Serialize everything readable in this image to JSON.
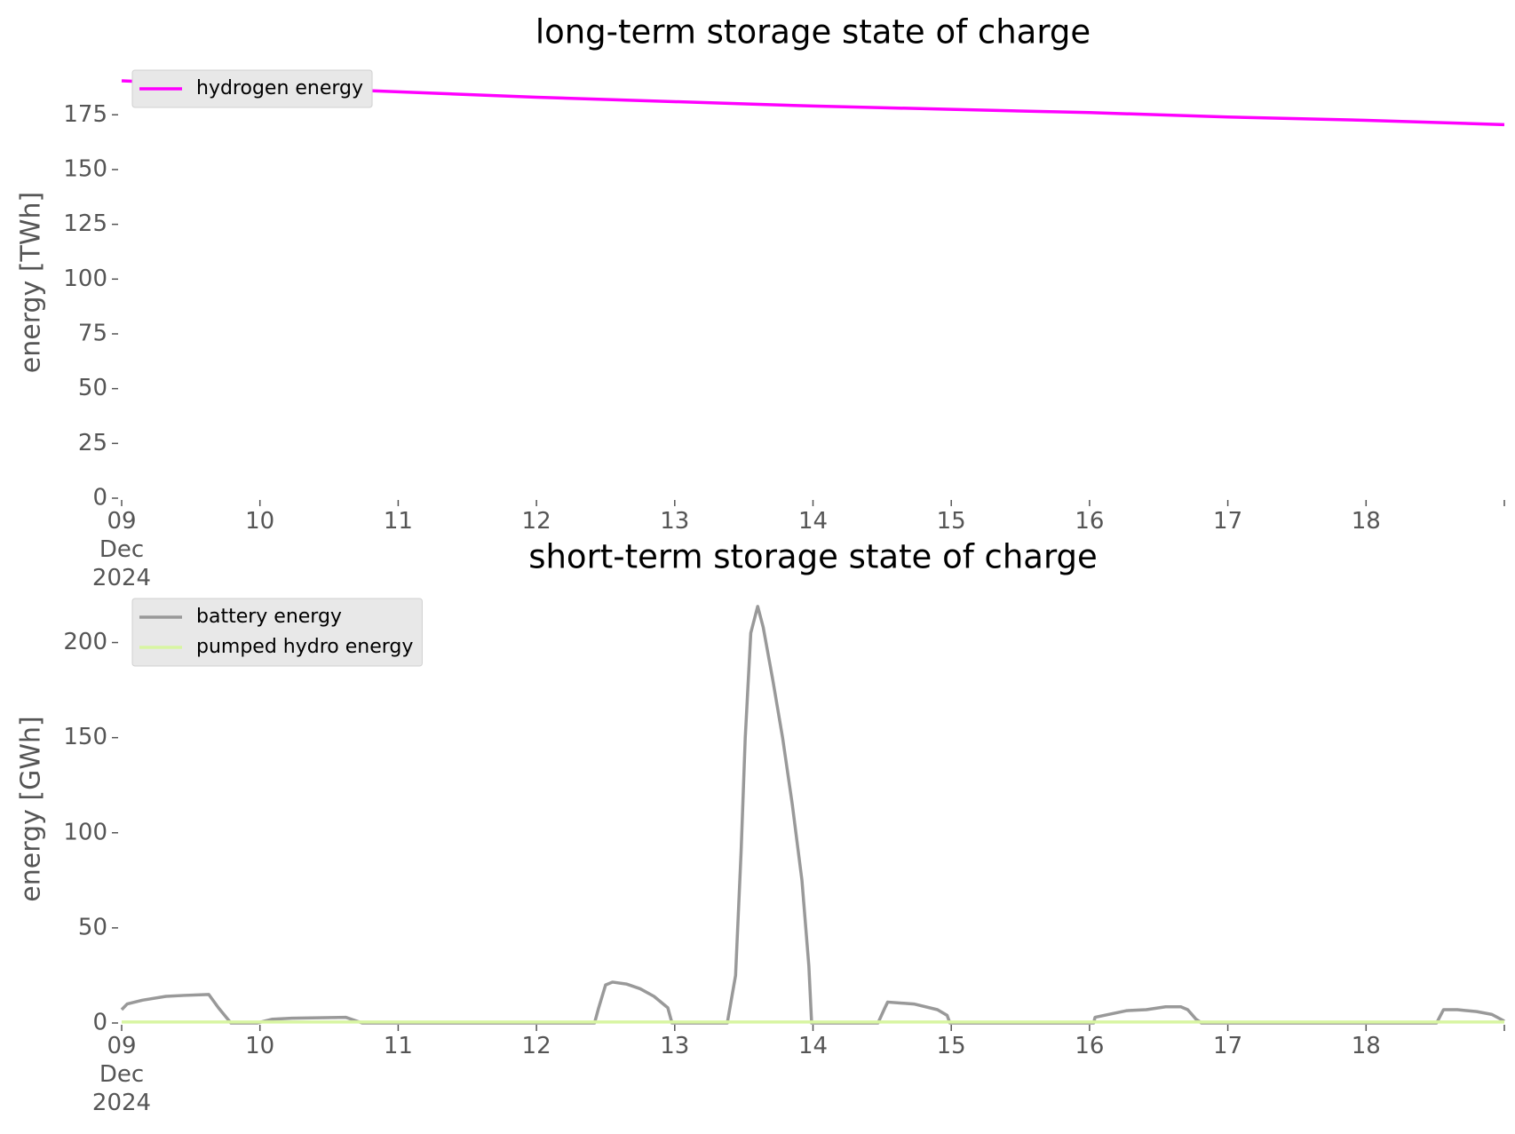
{
  "chart_data": [
    {
      "type": "line",
      "title": "long-term storage state of charge",
      "ylabel": "energy [TWh]",
      "x": [
        0,
        1,
        2,
        3,
        4,
        5,
        6,
        7,
        8,
        9,
        10
      ],
      "series": [
        {
          "name": "hydrogen energy",
          "color": "#ff00ff",
          "values": [
            190.5,
            188,
            185.5,
            183,
            181,
            179,
            177.5,
            176,
            174,
            172.5,
            170.5
          ]
        }
      ],
      "xlim": [
        0,
        10
      ],
      "xticks": [
        {
          "value": 0,
          "label": "09\nDec\n2024"
        },
        {
          "value": 1,
          "label": "10"
        },
        {
          "value": 2,
          "label": "11"
        },
        {
          "value": 3,
          "label": "12"
        },
        {
          "value": 4,
          "label": "13"
        },
        {
          "value": 5,
          "label": "14"
        },
        {
          "value": 6,
          "label": "15"
        },
        {
          "value": 7,
          "label": "16"
        },
        {
          "value": 8,
          "label": "17"
        },
        {
          "value": 9,
          "label": "18"
        },
        {
          "value": 10,
          "label": ""
        }
      ],
      "ylim": [
        0,
        197
      ],
      "yticks": [
        0,
        25,
        50,
        75,
        100,
        125,
        150,
        175
      ],
      "legend": "upper left"
    },
    {
      "type": "line",
      "title": "short-term storage state of charge",
      "ylabel": "energy [GWh]",
      "x": [
        0,
        0.04,
        0.15,
        0.32,
        0.45,
        0.63,
        0.7,
        0.79,
        0.98,
        1.09,
        1.23,
        1.62,
        1.74,
        3.42,
        3.45,
        3.5,
        3.55,
        3.65,
        3.75,
        3.85,
        3.95,
        3.98,
        4.38,
        4.44,
        4.48,
        4.51,
        4.55,
        4.6,
        4.64,
        4.71,
        4.78,
        4.85,
        4.92,
        4.97,
        4.99,
        5.47,
        5.52,
        5.54,
        5.73,
        5.9,
        5.97,
        5.99,
        7.03,
        7.04,
        7.17,
        7.27,
        7.41,
        7.55,
        7.66,
        7.71,
        7.77,
        7.81,
        9.51,
        9.56,
        9.66,
        9.8,
        9.91,
        10
      ],
      "series": [
        {
          "name": "battery energy",
          "color": "#999999",
          "values": [
            7,
            10,
            12,
            14,
            14.5,
            15,
            8,
            0,
            0,
            2,
            2.5,
            3,
            0,
            0,
            8,
            20,
            21.5,
            20.5,
            18,
            14,
            8,
            0,
            0,
            25,
            90,
            150,
            205,
            219,
            208,
            180,
            150,
            115,
            75,
            30,
            0,
            0,
            8,
            11,
            10,
            7,
            4,
            0,
            0,
            3,
            5,
            6.5,
            7,
            8.5,
            8.5,
            7,
            2,
            0,
            0,
            7,
            7,
            6,
            4.5,
            1
          ]
        },
        {
          "name": "pumped hydro energy",
          "color": "#d8f5a2",
          "values": [
            0.5,
            0.5,
            0.5,
            0.5,
            0.5,
            0.5,
            0.5,
            0.5,
            0.5,
            0.5,
            0.5,
            0.5,
            0.5,
            0.5,
            0.5,
            0.5,
            0.5,
            0.5,
            0.5,
            0.5,
            0.5,
            0.5,
            0.5,
            0.5,
            0.5,
            0.5,
            0.5,
            0.5,
            0.5,
            0.5,
            0.5,
            0.5,
            0.5,
            0.5,
            0.5,
            0.5,
            0.5,
            0.5,
            0.5,
            0.5,
            0.5,
            0.5,
            0.5,
            0.5,
            0.5,
            0.5,
            0.5,
            0.5,
            0.5,
            0.5,
            0.5,
            0.5,
            0.5,
            0.5,
            0.5,
            0.5,
            0.5,
            0.5
          ]
        }
      ],
      "xlim": [
        0,
        10
      ],
      "xticks": [
        {
          "value": 0,
          "label": "09\nDec\n2024"
        },
        {
          "value": 1,
          "label": "10"
        },
        {
          "value": 2,
          "label": "11"
        },
        {
          "value": 3,
          "label": "12"
        },
        {
          "value": 4,
          "label": "13"
        },
        {
          "value": 5,
          "label": "14"
        },
        {
          "value": 6,
          "label": "15"
        },
        {
          "value": 7,
          "label": "16"
        },
        {
          "value": 8,
          "label": "17"
        },
        {
          "value": 9,
          "label": "18"
        },
        {
          "value": 10,
          "label": ""
        }
      ],
      "ylim": [
        0,
        225
      ],
      "yticks": [
        0,
        50,
        100,
        150,
        200
      ],
      "legend": "upper left"
    }
  ]
}
